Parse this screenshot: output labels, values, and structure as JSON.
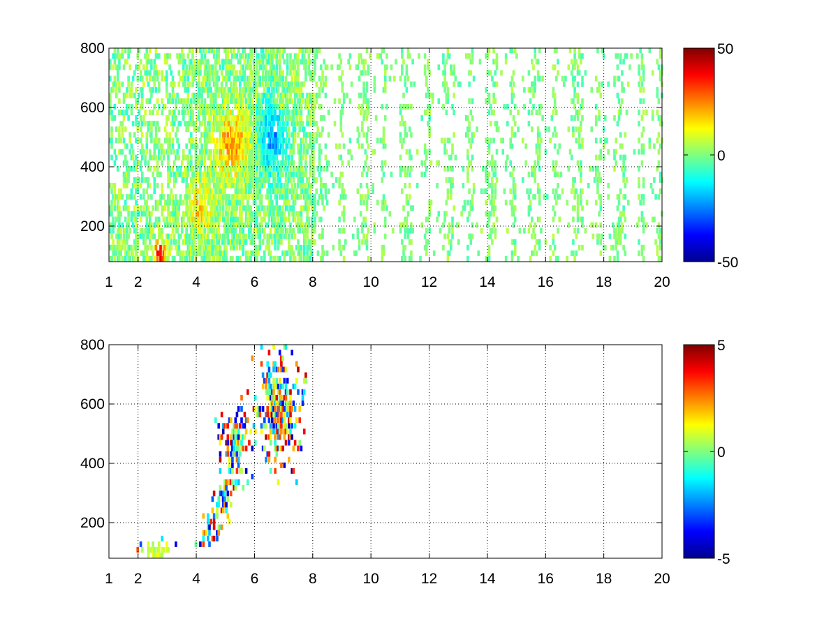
{
  "chart_data": [
    {
      "type": "heatmap",
      "title": "",
      "xlabel": "",
      "ylabel": "",
      "xlim": [
        1,
        20
      ],
      "ylim": [
        80,
        800
      ],
      "x_ticks": [
        "1",
        "2",
        "4",
        "6",
        "8",
        "10",
        "12",
        "14",
        "16",
        "18",
        "20"
      ],
      "x_tick_values": [
        1,
        2,
        4,
        6,
        8,
        10,
        12,
        14,
        16,
        18,
        20
      ],
      "y_ticks": [
        "200",
        "400",
        "600",
        "800"
      ],
      "y_tick_values": [
        200,
        400,
        600,
        800
      ],
      "grid": true,
      "colormap": "jet",
      "colorbar": {
        "min": -50,
        "max": 50,
        "ticks": [
          "50",
          "0",
          "-50"
        ],
        "tick_values": [
          50,
          0,
          -50
        ]
      },
      "features": [
        {
          "x": [
            1,
            8
          ],
          "y": [
            80,
            800
          ],
          "value": 0,
          "description": "dense field of mostly near-zero values"
        },
        {
          "x": [
            2.4,
            2.9
          ],
          "y": [
            80,
            160
          ],
          "value": 40,
          "description": "strong positive peak near x 2.7, y 100"
        },
        {
          "x": [
            4.6,
            5.9
          ],
          "y": [
            380,
            560
          ],
          "value": 20,
          "description": "positive band"
        },
        {
          "x": [
            6.0,
            7.2
          ],
          "y": [
            380,
            620
          ],
          "value": -20,
          "description": "negative core"
        },
        {
          "x": [
            8,
            20
          ],
          "y": [
            80,
            800
          ],
          "value": 0,
          "description": "sparse scattered near-zero columns"
        }
      ]
    },
    {
      "type": "heatmap",
      "title": "",
      "xlabel": "",
      "ylabel": "",
      "xlim": [
        1,
        20
      ],
      "ylim": [
        80,
        800
      ],
      "x_ticks": [
        "1",
        "2",
        "4",
        "6",
        "8",
        "10",
        "12",
        "14",
        "16",
        "18",
        "20"
      ],
      "x_tick_values": [
        1,
        2,
        4,
        6,
        8,
        10,
        12,
        14,
        16,
        18,
        20
      ],
      "y_ticks": [
        "200",
        "400",
        "600",
        "800"
      ],
      "y_tick_values": [
        200,
        400,
        600,
        800
      ],
      "grid": true,
      "colormap": "jet",
      "colorbar": {
        "min": -5,
        "max": 5,
        "ticks": [
          "5",
          "0",
          "-5"
        ],
        "tick_values": [
          5,
          0,
          -5
        ]
      },
      "features": [
        {
          "x": [
            4.5,
            6.0
          ],
          "y": [
            380,
            560
          ],
          "value": 0,
          "description": "mixed positive and negative cluster"
        },
        {
          "x": [
            6.0,
            7.8
          ],
          "y": [
            380,
            760
          ],
          "value": 0,
          "description": "mixed positive and negative cluster"
        },
        {
          "x": [
            3.7,
            5.6
          ],
          "y": [
            100,
            330
          ],
          "value": 0,
          "description": "diagonal trail"
        },
        {
          "x": [
            2.0,
            3.2
          ],
          "y": [
            80,
            160
          ],
          "value": 1,
          "description": "near-zero patch at bottom"
        }
      ]
    }
  ]
}
